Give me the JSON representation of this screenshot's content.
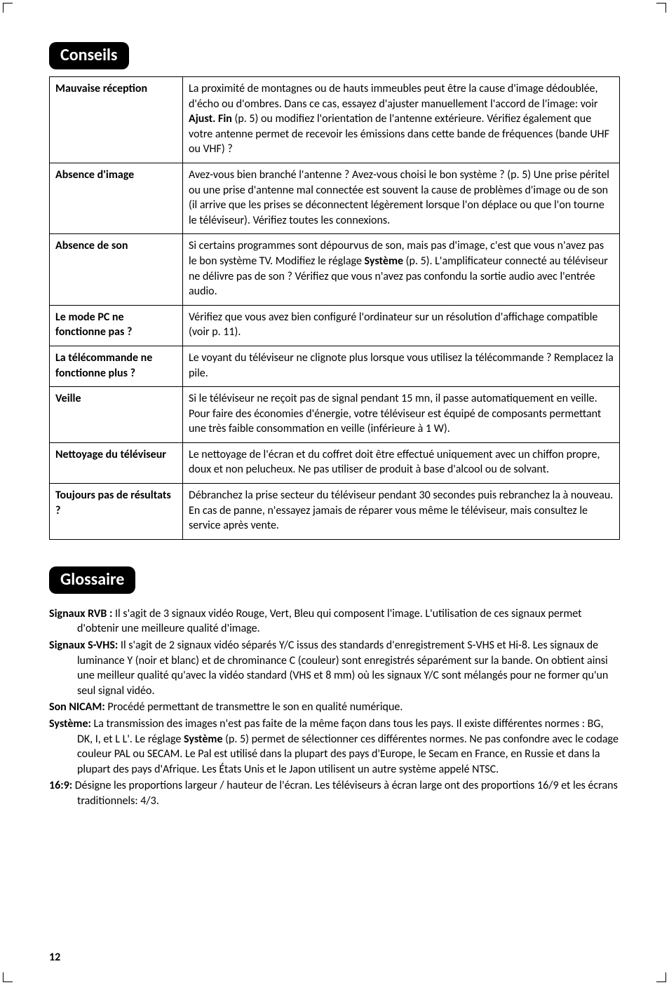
{
  "sections": {
    "conseils": {
      "title": "Conseils",
      "rows": [
        {
          "label": "Mauvaise réception",
          "text": "La proximité de montagnes ou de hauts immeubles peut être la cause d'image dédoublée, d'écho ou d'ombres. Dans ce cas, essayez d'ajuster manuellement l'accord de l'image: voir <b>Ajust. Fin</b> (p. 5) ou modifiez l'orientation de l'antenne extérieure. Vérifiez également que votre antenne permet de recevoir les émissions dans cette bande de fréquences (bande UHF ou VHF) ?"
        },
        {
          "label": "Absence d'image",
          "text": "Avez-vous bien branché l'antenne ? Avez-vous choisi le bon système ? (p. 5) Une prise péritel ou une prise d'antenne mal connectée est souvent la cause de problèmes d'image ou de son (il arrive que les prises se déconnectent légèrement lorsque l'on déplace ou que l'on tourne le téléviseur). Vérifiez toutes les connexions."
        },
        {
          "label": "Absence de son",
          "text": "Si certains programmes sont dépourvus de son, mais pas d'image, c'est que vous n'avez pas le bon système TV. Modifiez le réglage <b>Système</b> (p. 5). L'amplificateur connecté au téléviseur ne délivre pas de son ? Vérifiez que vous n'avez pas confondu la sortie audio avec l'entrée audio."
        },
        {
          "label": "Le mode PC ne fonctionne pas ?",
          "text": "Vérifiez que vous avez bien configuré l'ordinateur sur un résolution d'affichage compatible (voir p. 11)."
        },
        {
          "label": "La télécommande ne fonctionne plus ?",
          "text": "Le voyant du téléviseur ne clignote plus lorsque vous utilisez la télécommande ? Remplacez la pile."
        },
        {
          "label": "Veille",
          "text": "Si le téléviseur ne reçoit pas de signal pendant 15 mn, il passe automatiquement en veille.<br>Pour faire des économies d'énergie, votre téléviseur est équipé de composants permettant une très faible consommation en veille (inférieure à 1 W)."
        },
        {
          "label": "Nettoyage du téléviseur",
          "text": "Le nettoyage de l'écran et du coffret doit être effectué uniquement avec un chiffon propre, doux et non pelucheux. Ne pas utiliser de produit à base d'alcool ou de solvant."
        },
        {
          "label": "Toujours pas de résultats ?",
          "text": "Débranchez la prise secteur du téléviseur pendant 30 secondes puis rebranchez la à nouveau.<br>En cas de panne, n'essayez jamais de réparer vous même le téléviseur, mais consultez le service après vente."
        }
      ]
    },
    "glossaire": {
      "title": "Glossaire",
      "items": [
        {
          "term": "Signaux RVB :",
          "def": "Il s'agit de 3 signaux vidéo Rouge, Vert, Bleu qui composent l'image. L'utilisation de ces signaux permet d'obtenir une meilleure qualité d'image."
        },
        {
          "term": "Signaux S-VHS:",
          "def": "Il s'agit de 2 signaux vidéo séparés Y/C issus des standards d'enregistrement S-VHS et Hi-8. Les signaux de luminance Y (noir et blanc) et de chrominance C (couleur) sont enregistrés séparément sur la bande. On obtient ainsi une meilleur qualité qu'avec la vidéo standard (VHS et 8 mm) où les signaux Y/C sont mélangés pour ne former qu'un seul signal vidéo."
        },
        {
          "term": "Son NICAM:",
          "def": "Procédé permettant de transmettre le son en qualité numérique."
        },
        {
          "term": "Système:",
          "def": "La transmission des images n'est pas faite de la même façon dans tous les pays. Il existe différentes normes : BG, DK, I, et L L'. Le réglage <b>Système</b> (p. 5) permet de sélectionner ces différentes normes. Ne pas confondre avec le codage couleur PAL ou SECAM. Le Pal est utilisé dans la plupart des pays d'Europe, le Secam en France, en Russie et dans la plupart des pays d'Afrique. Les États Unis et le Japon utilisent un autre système appelé NTSC."
        },
        {
          "term": "16:9:",
          "def": "Désigne les proportions largeur / hauteur de l'écran. Les téléviseurs à écran large ont des proportions 16/9 et les écrans traditionnels: 4/3."
        }
      ]
    }
  },
  "pageNumber": "12"
}
